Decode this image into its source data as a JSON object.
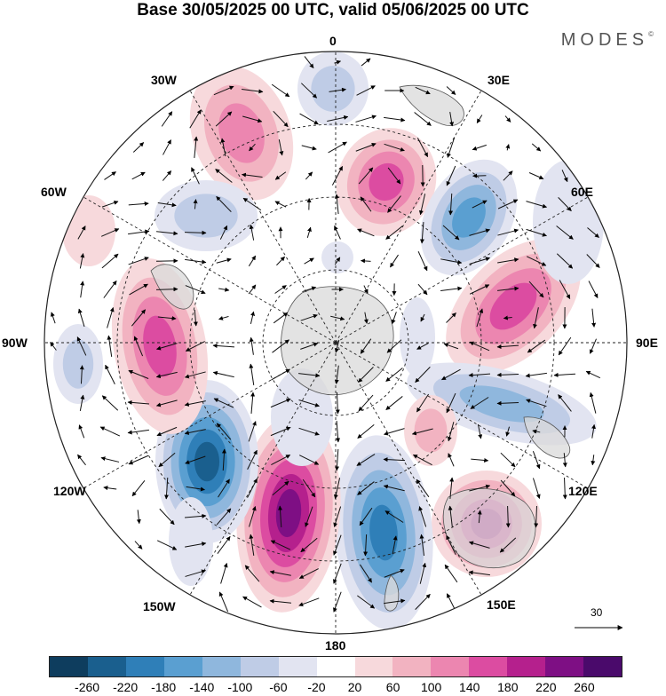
{
  "header": {
    "title": "Base 30/05/2025 00 UTC, valid 05/06/2025 00 UTC",
    "brand": "MODES",
    "brand_mark": "©"
  },
  "map": {
    "projection": "south-polar-stereographic",
    "longitude_labels": [
      "0",
      "30E",
      "60E",
      "90E",
      "120E",
      "150E",
      "180",
      "150W",
      "120W",
      "90W",
      "60W",
      "30W"
    ],
    "reference_vector_label": "30",
    "colorbar": {
      "tick_labels": [
        "-260",
        "-220",
        "-180",
        "-140",
        "-100",
        "-60",
        "-20",
        "20",
        "60",
        "100",
        "140",
        "180",
        "220",
        "260"
      ],
      "colors": [
        "#0e3d5e",
        "#1a5f8e",
        "#2f7fb8",
        "#5a9fd1",
        "#8fb7dd",
        "#bfcce6",
        "#e2e4f1",
        "#ffffff",
        "#f7d9dc",
        "#f2b3c1",
        "#ec86b0",
        "#dc4ca1",
        "#b5208d",
        "#7e0f84",
        "#4a0a6b"
      ]
    }
  }
}
